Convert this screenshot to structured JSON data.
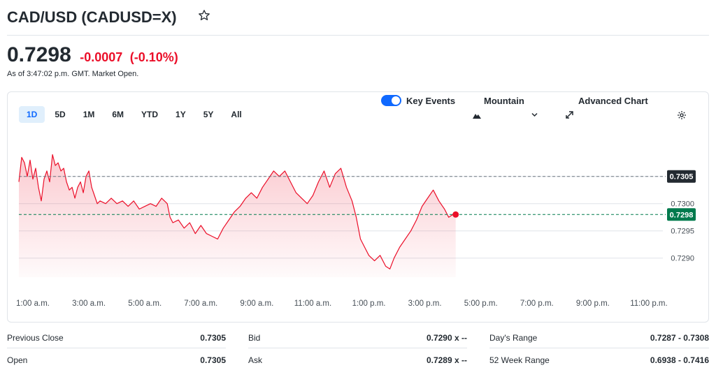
{
  "header": {
    "title": "CAD/USD (CADUSD=X)",
    "watchlist_icon": "star-icon"
  },
  "quote": {
    "price": "0.7298",
    "change": "-0.0007",
    "change_percent": "(-0.10%)",
    "as_of": "As of 3:47:02 p.m. GMT. Market Open.",
    "change_color": "#eb0f29"
  },
  "toolbar": {
    "ranges": [
      "1D",
      "5D",
      "1M",
      "6M",
      "YTD",
      "1Y",
      "5Y",
      "All"
    ],
    "active_range": "1D",
    "key_events_label": "Key Events",
    "key_events_on": true,
    "chart_type_label": "Mountain",
    "advanced_chart_label": "Advanced Chart",
    "settings_icon": "gear-icon"
  },
  "chart_data": {
    "type": "area",
    "x_ticks": [
      "1:00 a.m.",
      "3:00 a.m.",
      "5:00 a.m.",
      "7:00 a.m.",
      "9:00 a.m.",
      "11:00 a.m.",
      "1:00 p.m.",
      "3:00 p.m.",
      "5:00 p.m.",
      "7:00 p.m.",
      "9:00 p.m.",
      "11:00 p.m."
    ],
    "y_ticks": [
      {
        "label": "0.7305",
        "value": 0.7305
      },
      {
        "label": "0.7300",
        "value": 0.73
      },
      {
        "label": "0.7295",
        "value": 0.7295
      },
      {
        "label": "0.7290",
        "value": 0.729
      }
    ],
    "previous_close": {
      "label": "0.7305",
      "value": 0.7305
    },
    "current": {
      "label": "0.7298",
      "value": 0.7298
    },
    "ylim": [
      0.72865,
      0.73115
    ],
    "session_hours": [
      0.5,
      23.5
    ],
    "line_color": "#eb0f29",
    "current_badge_color": "#007a4d",
    "prev_close_badge_color": "#232a31",
    "series": [
      {
        "t": 0.5,
        "v": 0.7304
      },
      {
        "t": 0.6,
        "v": 0.73085
      },
      {
        "t": 0.7,
        "v": 0.73075
      },
      {
        "t": 0.8,
        "v": 0.7305
      },
      {
        "t": 0.9,
        "v": 0.7308
      },
      {
        "t": 1.0,
        "v": 0.73045
      },
      {
        "t": 1.1,
        "v": 0.73065
      },
      {
        "t": 1.2,
        "v": 0.7303
      },
      {
        "t": 1.3,
        "v": 0.73005
      },
      {
        "t": 1.4,
        "v": 0.73045
      },
      {
        "t": 1.5,
        "v": 0.7306
      },
      {
        "t": 1.6,
        "v": 0.7304
      },
      {
        "t": 1.7,
        "v": 0.7309
      },
      {
        "t": 1.8,
        "v": 0.7307
      },
      {
        "t": 1.9,
        "v": 0.73075
      },
      {
        "t": 2.0,
        "v": 0.7306
      },
      {
        "t": 2.1,
        "v": 0.73065
      },
      {
        "t": 2.2,
        "v": 0.7304
      },
      {
        "t": 2.3,
        "v": 0.73025
      },
      {
        "t": 2.4,
        "v": 0.7303
      },
      {
        "t": 2.5,
        "v": 0.7301
      },
      {
        "t": 2.6,
        "v": 0.7303
      },
      {
        "t": 2.7,
        "v": 0.7304
      },
      {
        "t": 2.8,
        "v": 0.7302
      },
      {
        "t": 2.9,
        "v": 0.7305
      },
      {
        "t": 3.0,
        "v": 0.7306
      },
      {
        "t": 3.1,
        "v": 0.7303
      },
      {
        "t": 3.2,
        "v": 0.73015
      },
      {
        "t": 3.3,
        "v": 0.73
      },
      {
        "t": 3.4,
        "v": 0.73005
      },
      {
        "t": 3.6,
        "v": 0.73
      },
      {
        "t": 3.8,
        "v": 0.7301
      },
      {
        "t": 4.0,
        "v": 0.73
      },
      {
        "t": 4.2,
        "v": 0.73005
      },
      {
        "t": 4.4,
        "v": 0.72995
      },
      {
        "t": 4.6,
        "v": 0.73005
      },
      {
        "t": 4.8,
        "v": 0.7299
      },
      {
        "t": 5.0,
        "v": 0.72995
      },
      {
        "t": 5.2,
        "v": 0.73
      },
      {
        "t": 5.4,
        "v": 0.72995
      },
      {
        "t": 5.6,
        "v": 0.7301
      },
      {
        "t": 5.8,
        "v": 0.73
      },
      {
        "t": 5.9,
        "v": 0.72975
      },
      {
        "t": 6.0,
        "v": 0.72965
      },
      {
        "t": 6.2,
        "v": 0.7297
      },
      {
        "t": 6.4,
        "v": 0.72955
      },
      {
        "t": 6.6,
        "v": 0.72965
      },
      {
        "t": 6.8,
        "v": 0.72945
      },
      {
        "t": 7.0,
        "v": 0.7296
      },
      {
        "t": 7.2,
        "v": 0.72945
      },
      {
        "t": 7.4,
        "v": 0.7294
      },
      {
        "t": 7.6,
        "v": 0.72935
      },
      {
        "t": 7.8,
        "v": 0.72955
      },
      {
        "t": 8.0,
        "v": 0.7297
      },
      {
        "t": 8.2,
        "v": 0.72985
      },
      {
        "t": 8.4,
        "v": 0.72995
      },
      {
        "t": 8.6,
        "v": 0.7301
      },
      {
        "t": 8.8,
        "v": 0.7302
      },
      {
        "t": 9.0,
        "v": 0.7301
      },
      {
        "t": 9.2,
        "v": 0.7303
      },
      {
        "t": 9.4,
        "v": 0.73045
      },
      {
        "t": 9.6,
        "v": 0.7306
      },
      {
        "t": 9.8,
        "v": 0.7305
      },
      {
        "t": 10.0,
        "v": 0.7306
      },
      {
        "t": 10.2,
        "v": 0.7304
      },
      {
        "t": 10.4,
        "v": 0.7302
      },
      {
        "t": 10.6,
        "v": 0.7301
      },
      {
        "t": 10.8,
        "v": 0.73
      },
      {
        "t": 11.0,
        "v": 0.73015
      },
      {
        "t": 11.2,
        "v": 0.7304
      },
      {
        "t": 11.4,
        "v": 0.7306
      },
      {
        "t": 11.6,
        "v": 0.7303
      },
      {
        "t": 11.8,
        "v": 0.73055
      },
      {
        "t": 12.0,
        "v": 0.73065
      },
      {
        "t": 12.2,
        "v": 0.7303
      },
      {
        "t": 12.4,
        "v": 0.73005
      },
      {
        "t": 12.55,
        "v": 0.72975
      },
      {
        "t": 12.7,
        "v": 0.72935
      },
      {
        "t": 12.85,
        "v": 0.7292
      },
      {
        "t": 13.0,
        "v": 0.72905
      },
      {
        "t": 13.2,
        "v": 0.72895
      },
      {
        "t": 13.4,
        "v": 0.72905
      },
      {
        "t": 13.6,
        "v": 0.72885
      },
      {
        "t": 13.75,
        "v": 0.7288
      },
      {
        "t": 13.9,
        "v": 0.729
      },
      {
        "t": 14.1,
        "v": 0.7292
      },
      {
        "t": 14.3,
        "v": 0.72935
      },
      {
        "t": 14.5,
        "v": 0.7295
      },
      {
        "t": 14.7,
        "v": 0.7297
      },
      {
        "t": 14.9,
        "v": 0.72995
      },
      {
        "t": 15.1,
        "v": 0.7301
      },
      {
        "t": 15.3,
        "v": 0.73025
      },
      {
        "t": 15.5,
        "v": 0.73005
      },
      {
        "t": 15.7,
        "v": 0.7299
      },
      {
        "t": 15.85,
        "v": 0.72975
      },
      {
        "t": 16.0,
        "v": 0.7298
      },
      {
        "t": 16.1,
        "v": 0.7298
      }
    ]
  },
  "stats": {
    "previous_close": {
      "label": "Previous Close",
      "value": "0.7305"
    },
    "open": {
      "label": "Open",
      "value": "0.7305"
    },
    "bid": {
      "label": "Bid",
      "value": "0.7290 x --"
    },
    "ask": {
      "label": "Ask",
      "value": "0.7289 x --"
    },
    "days_range": {
      "label": "Day's Range",
      "value": "0.7287 - 0.7308"
    },
    "week52_range": {
      "label": "52 Week Range",
      "value": "0.6938 - 0.7416"
    }
  }
}
